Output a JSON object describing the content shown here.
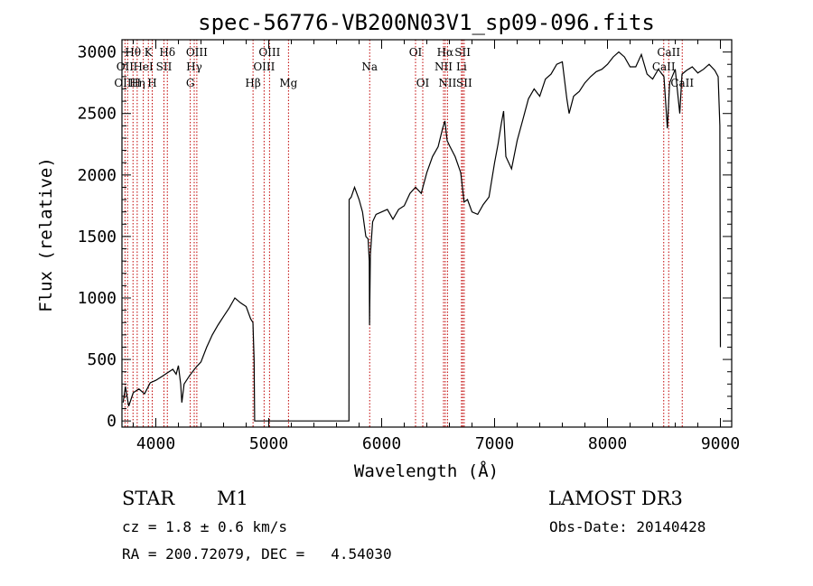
{
  "chart_data": {
    "type": "line",
    "title": "spec-56776-VB200N03V1_sp09-096.fits",
    "xlabel": "Wavelength (Å)",
    "ylabel": "Flux (relative)",
    "xlim": [
      3700,
      9100
    ],
    "ylim": [
      -50,
      3100
    ],
    "x_ticks": [
      4000,
      5000,
      6000,
      7000,
      8000,
      9000
    ],
    "y_ticks": [
      0,
      500,
      1000,
      1500,
      2000,
      2500,
      3000
    ],
    "grid": false,
    "series": [
      {
        "name": "flux",
        "color": "#000000",
        "points": [
          [
            3710,
            150
          ],
          [
            3730,
            280
          ],
          [
            3760,
            120
          ],
          [
            3800,
            230
          ],
          [
            3850,
            260
          ],
          [
            3900,
            220
          ],
          [
            3950,
            310
          ],
          [
            4000,
            330
          ],
          [
            4050,
            360
          ],
          [
            4100,
            390
          ],
          [
            4150,
            420
          ],
          [
            4180,
            380
          ],
          [
            4200,
            450
          ],
          [
            4220,
            300
          ],
          [
            4230,
            150
          ],
          [
            4250,
            300
          ],
          [
            4300,
            370
          ],
          [
            4350,
            430
          ],
          [
            4400,
            480
          ],
          [
            4450,
            600
          ],
          [
            4500,
            700
          ],
          [
            4550,
            780
          ],
          [
            4600,
            850
          ],
          [
            4650,
            920
          ],
          [
            4700,
            1000
          ],
          [
            4750,
            960
          ],
          [
            4800,
            930
          ],
          [
            4840,
            830
          ],
          [
            4860,
            800
          ],
          [
            4870,
            500
          ],
          [
            4875,
            0
          ],
          [
            5000,
            0
          ],
          [
            5700,
            0
          ],
          [
            5710,
            0
          ],
          [
            5712,
            1800
          ],
          [
            5730,
            1820
          ],
          [
            5760,
            1900
          ],
          [
            5800,
            1800
          ],
          [
            5830,
            1700
          ],
          [
            5860,
            1500
          ],
          [
            5880,
            1480
          ],
          [
            5890,
            1300
          ],
          [
            5893,
            780
          ],
          [
            5900,
            1350
          ],
          [
            5920,
            1620
          ],
          [
            5950,
            1680
          ],
          [
            6000,
            1700
          ],
          [
            6050,
            1720
          ],
          [
            6100,
            1640
          ],
          [
            6150,
            1720
          ],
          [
            6200,
            1750
          ],
          [
            6250,
            1850
          ],
          [
            6300,
            1900
          ],
          [
            6350,
            1850
          ],
          [
            6400,
            2020
          ],
          [
            6450,
            2150
          ],
          [
            6500,
            2230
          ],
          [
            6540,
            2380
          ],
          [
            6560,
            2440
          ],
          [
            6580,
            2280
          ],
          [
            6600,
            2240
          ],
          [
            6650,
            2150
          ],
          [
            6700,
            2020
          ],
          [
            6730,
            1780
          ],
          [
            6760,
            1800
          ],
          [
            6800,
            1700
          ],
          [
            6850,
            1680
          ],
          [
            6900,
            1760
          ],
          [
            6950,
            1820
          ],
          [
            7000,
            2100
          ],
          [
            7030,
            2250
          ],
          [
            7060,
            2420
          ],
          [
            7080,
            2520
          ],
          [
            7100,
            2150
          ],
          [
            7150,
            2050
          ],
          [
            7200,
            2280
          ],
          [
            7250,
            2450
          ],
          [
            7300,
            2620
          ],
          [
            7350,
            2700
          ],
          [
            7400,
            2640
          ],
          [
            7450,
            2780
          ],
          [
            7500,
            2820
          ],
          [
            7550,
            2900
          ],
          [
            7600,
            2920
          ],
          [
            7640,
            2620
          ],
          [
            7660,
            2500
          ],
          [
            7700,
            2640
          ],
          [
            7750,
            2680
          ],
          [
            7800,
            2750
          ],
          [
            7850,
            2800
          ],
          [
            7900,
            2840
          ],
          [
            7950,
            2860
          ],
          [
            8000,
            2900
          ],
          [
            8050,
            2960
          ],
          [
            8100,
            3000
          ],
          [
            8150,
            2960
          ],
          [
            8200,
            2880
          ],
          [
            8250,
            2880
          ],
          [
            8300,
            2980
          ],
          [
            8350,
            2820
          ],
          [
            8400,
            2780
          ],
          [
            8450,
            2860
          ],
          [
            8500,
            2800
          ],
          [
            8530,
            2380
          ],
          [
            8550,
            2750
          ],
          [
            8600,
            2860
          ],
          [
            8640,
            2500
          ],
          [
            8660,
            2820
          ],
          [
            8700,
            2850
          ],
          [
            8750,
            2880
          ],
          [
            8800,
            2830
          ],
          [
            8850,
            2860
          ],
          [
            8900,
            2900
          ],
          [
            8950,
            2850
          ],
          [
            8980,
            2800
          ],
          [
            8995,
            2400
          ],
          [
            9000,
            600
          ]
        ]
      }
    ],
    "emission_lines": [
      {
        "wavelength": 3727,
        "label": "OII",
        "row": 2
      },
      {
        "wavelength": 3750,
        "label": "OIIH",
        "row": 3
      },
      {
        "wavelength": 3798,
        "label": "Hθ",
        "row": 1
      },
      {
        "wavelength": 3835,
        "label": "Hη",
        "row": 3
      },
      {
        "wavelength": 3889,
        "label": "HeI",
        "row": 2
      },
      {
        "wavelength": 3934,
        "label": "K",
        "row": 1
      },
      {
        "wavelength": 3968,
        "label": "H",
        "row": 3
      },
      {
        "wavelength": 4072,
        "label": "SII",
        "row": 2
      },
      {
        "wavelength": 4102,
        "label": "Hδ",
        "row": 1
      },
      {
        "wavelength": 4305,
        "label": "G",
        "row": 3
      },
      {
        "wavelength": 4340,
        "label": "Hγ",
        "row": 2
      },
      {
        "wavelength": 4363,
        "label": "OIII",
        "row": 1
      },
      {
        "wavelength": 4861,
        "label": "Hβ",
        "row": 3
      },
      {
        "wavelength": 4959,
        "label": "OIII",
        "row": 2
      },
      {
        "wavelength": 5007,
        "label": "OIII",
        "row": 1
      },
      {
        "wavelength": 5175,
        "label": "Mg",
        "row": 3
      },
      {
        "wavelength": 5894,
        "label": "Na",
        "row": 2
      },
      {
        "wavelength": 6300,
        "label": "OI",
        "row": 1
      },
      {
        "wavelength": 6364,
        "label": "OI",
        "row": 3
      },
      {
        "wavelength": 6548,
        "label": "NII",
        "row": 2
      },
      {
        "wavelength": 6563,
        "label": "Hα",
        "row": 1
      },
      {
        "wavelength": 6583,
        "label": "NII",
        "row": 3
      },
      {
        "wavelength": 6707,
        "label": "Li",
        "row": 2
      },
      {
        "wavelength": 6717,
        "label": "SII",
        "row": 1
      },
      {
        "wavelength": 6731,
        "label": "SII",
        "row": 3
      },
      {
        "wavelength": 8498,
        "label": "CaII",
        "row": 2
      },
      {
        "wavelength": 8542,
        "label": "CaII",
        "row": 1
      },
      {
        "wavelength": 8662,
        "label": "CaII",
        "row": 3
      }
    ]
  },
  "info": {
    "class": "STAR",
    "subclass": "M1",
    "survey": "LAMOST DR3",
    "cz": "cz = 1.8 ± 0.6 km/s",
    "obs_date": "Obs-Date: 20140428",
    "coords": "RA = 200.72079, DEC =   4.54030"
  }
}
